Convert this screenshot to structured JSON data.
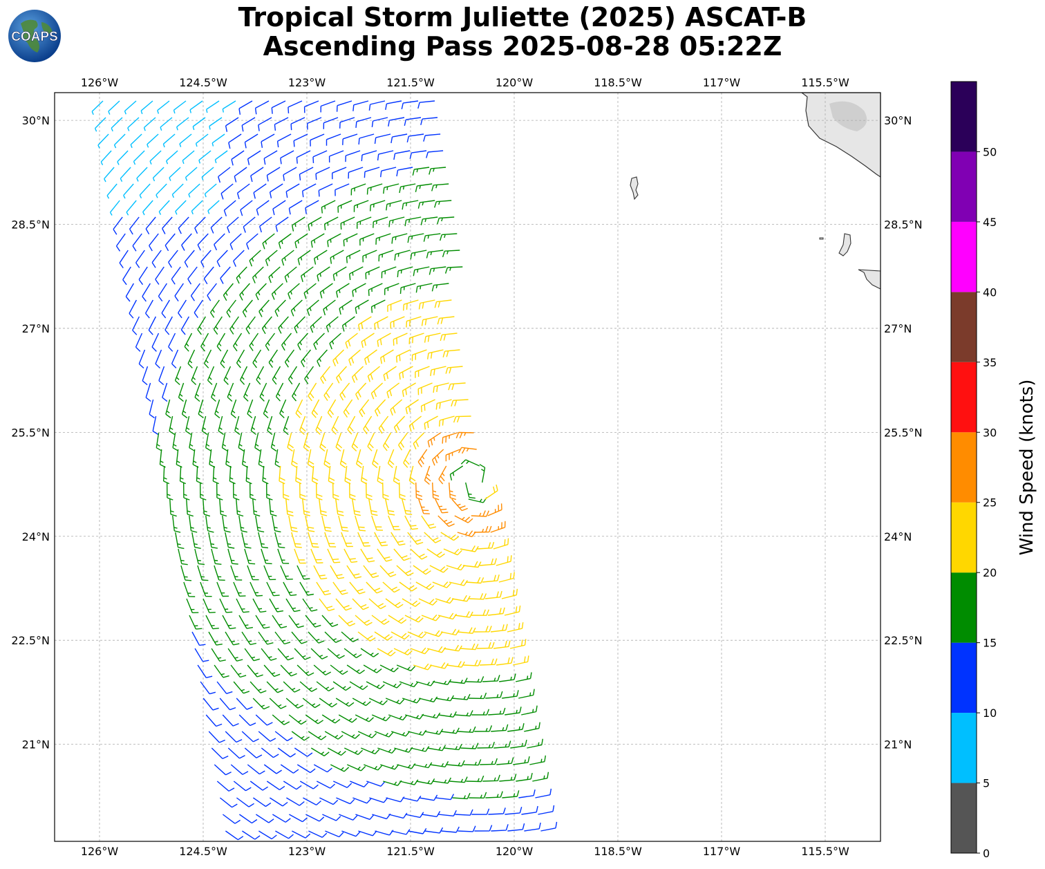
{
  "title": {
    "line1": "Tropical Storm Juliette (2025) ASCAT-B",
    "line2": "Ascending Pass 2025-08-28 05:22Z"
  },
  "logo": {
    "text": "COAPS",
    "icon": "globe-logo"
  },
  "map": {
    "lon_range": [
      -126.65,
      -114.7
    ],
    "lat_range": [
      19.6,
      30.4
    ],
    "lon_ticks": [
      "126°W",
      "124.5°W",
      "123°W",
      "121.5°W",
      "120°W",
      "118.5°W",
      "117°W",
      "115.5°W"
    ],
    "lon_tick_values": [
      -126,
      -124.5,
      -123,
      -121.5,
      -120,
      -118.5,
      -117,
      -115.5
    ],
    "lat_ticks": [
      "30°N",
      "28.5°N",
      "27°N",
      "25.5°N",
      "24°N",
      "22.5°N",
      "21°N"
    ],
    "lat_tick_values": [
      30,
      28.5,
      27,
      25.5,
      24,
      22.5,
      21
    ],
    "grid": true,
    "storm_center": {
      "lon": -120.6,
      "lat": 24.8
    },
    "land_color": "#e6e6e6",
    "coast_color": "#333333"
  },
  "colorbar": {
    "label": "Wind Speed (knots)",
    "ticks": [
      "0",
      "5",
      "10",
      "15",
      "20",
      "25",
      "30",
      "35",
      "40",
      "45",
      "50"
    ],
    "bins": [
      {
        "min": 0,
        "max": 5,
        "color": "#555555"
      },
      {
        "min": 5,
        "max": 10,
        "color": "#00bfff"
      },
      {
        "min": 10,
        "max": 15,
        "color": "#0033ff"
      },
      {
        "min": 15,
        "max": 20,
        "color": "#008c00"
      },
      {
        "min": 20,
        "max": 25,
        "color": "#ffd700"
      },
      {
        "min": 25,
        "max": 30,
        "color": "#ff8c00"
      },
      {
        "min": 30,
        "max": 35,
        "color": "#ff1010"
      },
      {
        "min": 35,
        "max": 40,
        "color": "#7b3b2b"
      },
      {
        "min": 40,
        "max": 45,
        "color": "#ff00ff"
      },
      {
        "min": 45,
        "max": 50,
        "color": "#8000b3"
      },
      {
        "min": 50,
        "max": 55,
        "color": "#2b0059"
      }
    ]
  }
}
